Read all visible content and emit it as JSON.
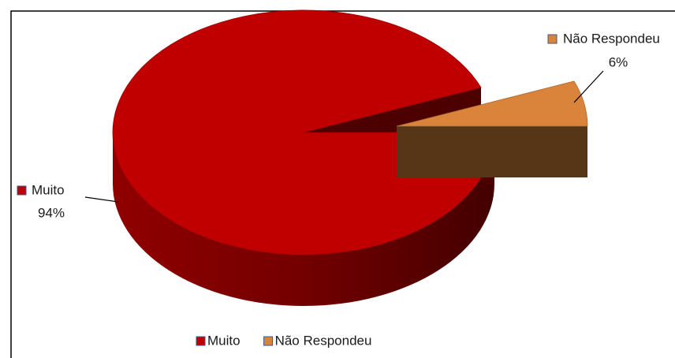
{
  "chart_data": {
    "type": "pie",
    "categories": [
      "Muito",
      "Não Respondeu"
    ],
    "values": [
      94,
      6
    ],
    "value_labels": [
      "94%",
      "6%"
    ],
    "colors": [
      "#c00000",
      "#d9843a"
    ],
    "legend": "bottom"
  }
}
